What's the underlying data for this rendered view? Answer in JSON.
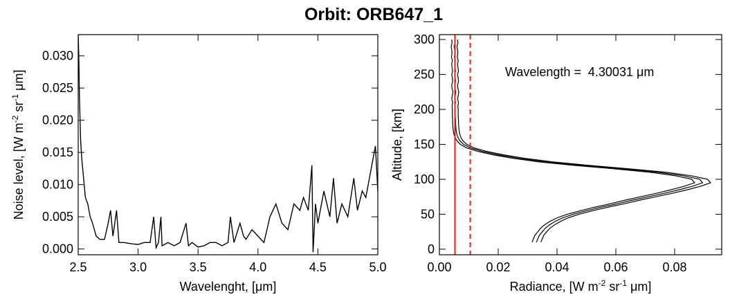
{
  "title": "Orbit: ORB647_1",
  "chart_data": [
    {
      "type": "line",
      "xlabel": "Wavelenght, [μm]",
      "ylabel": [
        "Noise level, [W m",
        "-2",
        " sr",
        "-1",
        " μm]"
      ],
      "x": [
        2.5,
        2.505,
        2.51,
        2.52,
        2.53,
        2.54,
        2.56,
        2.58,
        2.6,
        2.62,
        2.65,
        2.68,
        2.72,
        2.75,
        2.77,
        2.79,
        2.82,
        2.84,
        2.88,
        2.95,
        3.0,
        3.05,
        3.1,
        3.13,
        3.15,
        3.17,
        3.19,
        3.2,
        3.25,
        3.3,
        3.35,
        3.4,
        3.42,
        3.45,
        3.5,
        3.55,
        3.6,
        3.65,
        3.7,
        3.75,
        3.77,
        3.8,
        3.85,
        3.88,
        3.9,
        3.95,
        4.0,
        4.05,
        4.1,
        4.15,
        4.2,
        4.25,
        4.3,
        4.35,
        4.38,
        4.42,
        4.45,
        4.46,
        4.48,
        4.5,
        4.55,
        4.6,
        4.63,
        4.66,
        4.7,
        4.75,
        4.8,
        4.83,
        4.87,
        4.9,
        4.95,
        4.98,
        5.0
      ],
      "series": [
        {
          "color": "#000000",
          "values": [
            0.0333,
            0.03,
            0.024,
            0.017,
            0.014,
            0.012,
            0.008,
            0.007,
            0.005,
            0.004,
            0.002,
            0.0015,
            0.0015,
            0.004,
            0.006,
            0.002,
            0.006,
            0.001,
            0.001,
            0.0008,
            0.0007,
            0.001,
            0.001,
            0.005,
            0.0002,
            0.001,
            0.005,
            0.0005,
            0.001,
            0.0005,
            0.001,
            0.004,
            0.0005,
            0.001,
            0.0003,
            0.0005,
            0.001,
            0.001,
            0.0005,
            0.001,
            0.005,
            0.001,
            0.004,
            0.002,
            0.0015,
            0.003,
            0.002,
            0.001,
            0.005,
            0.007,
            0.004,
            0.003,
            0.007,
            0.006,
            0.008,
            0.006,
            0.013,
            -0.0005,
            0.007,
            0.004,
            0.009,
            0.005,
            0.011,
            0.004,
            0.007,
            0.005,
            0.011,
            0.006,
            0.009,
            0.008,
            0.013,
            0.016,
            0.009
          ]
        }
      ],
      "xlim": [
        2.5,
        5.0
      ],
      "xticks": [
        2.5,
        {
          "value": 3,
          "label": "3.0"
        },
        3.5,
        {
          "value": 4,
          "label": "4.0"
        },
        4.5,
        {
          "value": 5,
          "label": "5.0"
        }
      ],
      "ylim": [
        -0.0009,
        0.0333
      ],
      "yticks": [
        {
          "value": 0,
          "label": "0.000"
        },
        0.005,
        {
          "value": 0.01,
          "label": "0.010"
        },
        0.015,
        {
          "value": 0.02,
          "label": "0.020"
        },
        0.025,
        {
          "value": 0.03,
          "label": "0.030"
        }
      ]
    },
    {
      "type": "profile",
      "xlabel": [
        "Radiance, [W m",
        "-2",
        " sr",
        "-1",
        " μm]"
      ],
      "ylabel": "Altitude, [km]",
      "annotation": "Wavelength =  4.30031 μm",
      "y": [
        10,
        15,
        20,
        25,
        30,
        35,
        40,
        45,
        50,
        55,
        60,
        65,
        70,
        75,
        80,
        85,
        90,
        95,
        100,
        105,
        110,
        115,
        120,
        125,
        130,
        135,
        140,
        145,
        150,
        155,
        160,
        165,
        170,
        175,
        180,
        185,
        190,
        195,
        200,
        205,
        210,
        215,
        220,
        225,
        230,
        235,
        240,
        245,
        250,
        255,
        260,
        265,
        270,
        275,
        280,
        285,
        290,
        295,
        300
      ],
      "series": [
        {
          "color": "#000000",
          "values": [
            0.0345,
            0.035,
            0.0355,
            0.0365,
            0.0376,
            0.0392,
            0.0413,
            0.0439,
            0.0475,
            0.0521,
            0.0573,
            0.0629,
            0.068,
            0.0736,
            0.0792,
            0.0843,
            0.0888,
            0.0922,
            0.0912,
            0.0857,
            0.0772,
            0.0646,
            0.0505,
            0.0383,
            0.029,
            0.0218,
            0.016,
            0.0118,
            0.0093,
            0.008,
            0.0073,
            0.0069,
            0.0067,
            0.0066,
            0.0065,
            0.0065,
            0.0064,
            0.0064,
            0.0064,
            0.0063,
            0.0065,
            0.0062,
            0.0064,
            0.0066,
            0.0063,
            0.0062,
            0.0065,
            0.0064,
            0.0062,
            0.0065,
            0.0063,
            0.0062,
            0.0064,
            0.0061,
            0.0063,
            0.0062,
            0.006,
            0.0063,
            0.0062
          ]
        },
        {
          "color": "#000000",
          "values": [
            0.033,
            0.0335,
            0.034,
            0.035,
            0.036,
            0.0375,
            0.0395,
            0.042,
            0.0455,
            0.05,
            0.055,
            0.0605,
            0.0655,
            0.071,
            0.0765,
            0.0815,
            0.086,
            0.0895,
            0.0885,
            0.083,
            0.0745,
            0.062,
            0.048,
            0.036,
            0.027,
            0.02,
            0.0145,
            0.0105,
            0.0082,
            0.007,
            0.0063,
            0.0059,
            0.0057,
            0.0056,
            0.0055,
            0.0055,
            0.0054,
            0.0054,
            0.0054,
            0.0053,
            0.0055,
            0.0052,
            0.0054,
            0.0056,
            0.0053,
            0.0052,
            0.0055,
            0.0054,
            0.0052,
            0.0055,
            0.0053,
            0.0052,
            0.0054,
            0.0051,
            0.0053,
            0.0052,
            0.005,
            0.0053,
            0.0052
          ]
        },
        {
          "color": "#000000",
          "values": [
            0.0315,
            0.032,
            0.0325,
            0.0335,
            0.0344,
            0.0358,
            0.0377,
            0.0401,
            0.0435,
            0.0479,
            0.0527,
            0.0581,
            0.063,
            0.0684,
            0.0738,
            0.0787,
            0.0832,
            0.0868,
            0.0858,
            0.0803,
            0.0718,
            0.0594,
            0.0455,
            0.0337,
            0.025,
            0.0182,
            0.013,
            0.0092,
            0.0071,
            0.006,
            0.0053,
            0.0049,
            0.0047,
            0.0046,
            0.0045,
            0.0045,
            0.0044,
            0.0044,
            0.0044,
            0.0043,
            0.0045,
            0.0042,
            0.0044,
            0.0046,
            0.0043,
            0.0042,
            0.0045,
            0.0044,
            0.0042,
            0.0045,
            0.0043,
            0.0042,
            0.0044,
            0.0041,
            0.0043,
            0.0042,
            0.004,
            0.0043,
            0.0042
          ]
        }
      ],
      "vlines": [
        {
          "x": 0.0053,
          "color": "#e8201c",
          "dash": false
        },
        {
          "x": 0.0105,
          "color": "#e8201c",
          "dash": true
        }
      ],
      "xlim": [
        0,
        0.096
      ],
      "xticks": [
        {
          "value": 0,
          "label": "0.00"
        },
        0.02,
        0.04,
        0.06,
        0.08
      ],
      "ylim": [
        -8,
        307
      ],
      "yticks": [
        0,
        50,
        100,
        150,
        200,
        250,
        300
      ]
    }
  ]
}
